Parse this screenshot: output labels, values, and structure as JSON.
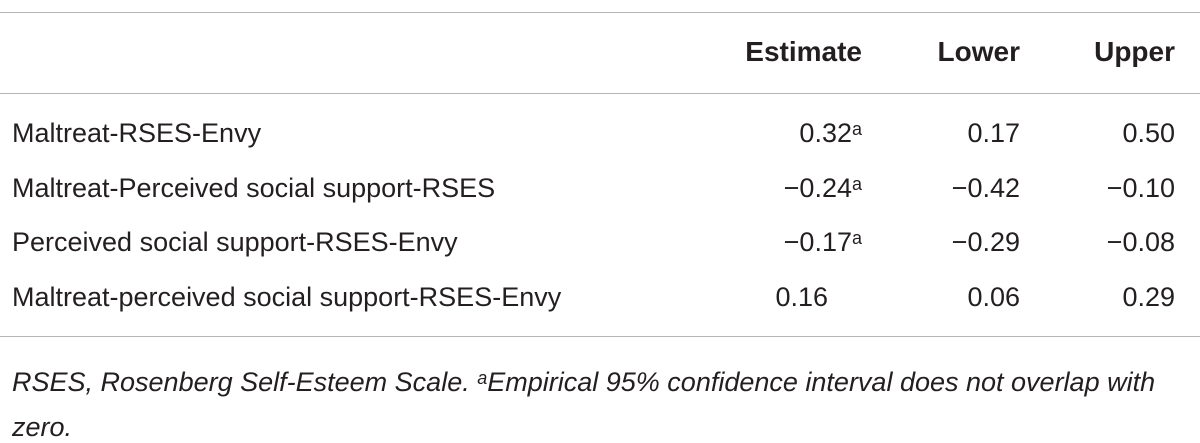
{
  "table": {
    "headers": [
      "Estimate",
      "Lower",
      "Upper"
    ],
    "rows": [
      {
        "label": "Maltreat-RSES-Envy",
        "estimate": "0.32",
        "estimate_note": "a",
        "lower": "0.17",
        "upper": "0.50"
      },
      {
        "label": "Maltreat-Perceived social support-RSES",
        "estimate": "−0.24",
        "estimate_note": "a",
        "lower": "−0.42",
        "upper": "−0.10"
      },
      {
        "label": "Perceived social support-RSES-Envy",
        "estimate": "−0.17",
        "estimate_note": "a",
        "lower": "−0.29",
        "upper": "−0.08"
      },
      {
        "label": "Maltreat-perceived social support-RSES-Envy",
        "estimate": "0.16",
        "lower": "0.06",
        "upper": "0.29"
      }
    ]
  },
  "footnote": {
    "abbreviation": "RSES, Rosenberg Self-Esteem Scale.",
    "marker": "a",
    "note": "Empirical 95% confidence interval does not overlap with zero."
  }
}
